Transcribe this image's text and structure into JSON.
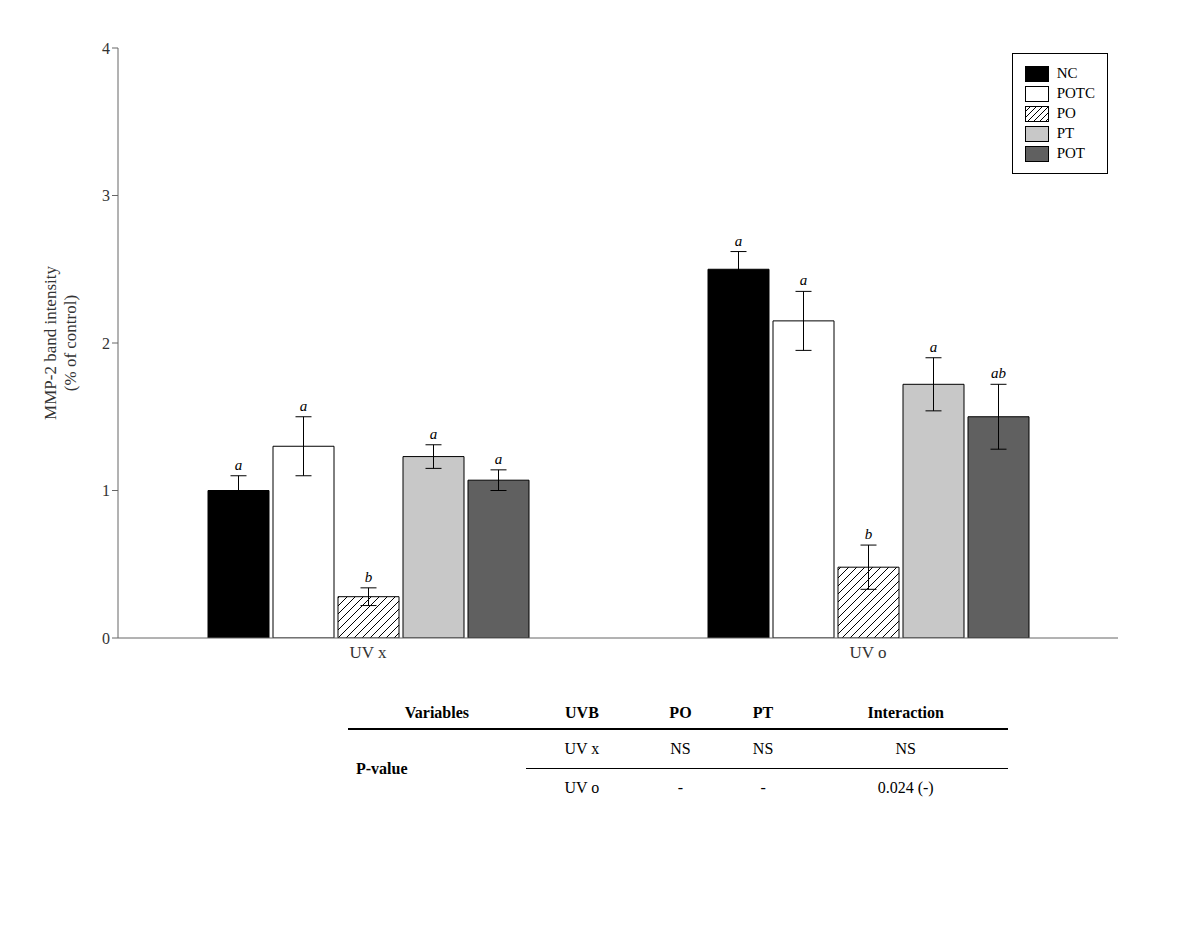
{
  "chart_data": {
    "type": "bar",
    "categories": [
      "UV x",
      "UV o"
    ],
    "ylabel": "MMP-2 band intensity\n(% of control)",
    "ylim": [
      0,
      4
    ],
    "yticks": [
      0,
      1,
      2,
      3,
      4
    ],
    "legend": "upper right",
    "series": [
      {
        "name": "NC",
        "color": "#000000",
        "values": [
          1.0,
          2.5
        ],
        "errors": [
          0.1,
          0.12
        ],
        "letters": [
          "a",
          "a"
        ]
      },
      {
        "name": "POTC",
        "color": "#ffffff",
        "values": [
          1.3,
          2.15
        ],
        "errors": [
          0.2,
          0.2
        ],
        "letters": [
          "a",
          "a"
        ]
      },
      {
        "name": "PO",
        "color": "#ffffff",
        "values": [
          0.28,
          0.48
        ],
        "errors": [
          0.06,
          0.15
        ],
        "letters": [
          "b",
          "b"
        ]
      },
      {
        "name": "PT",
        "color": "#c8c8c8",
        "values": [
          1.23,
          1.72
        ],
        "errors": [
          0.08,
          0.18
        ],
        "letters": [
          "a",
          "a"
        ]
      },
      {
        "name": "POT",
        "color": "#606060",
        "values": [
          1.07,
          1.5
        ],
        "errors": [
          0.07,
          0.22
        ],
        "letters": [
          "a",
          "ab"
        ]
      }
    ],
    "table": {
      "headers": [
        "Variables",
        "UVB",
        "PO",
        "PT",
        "Interaction"
      ],
      "row_label": "P-value",
      "rows": [
        [
          "UV x",
          "NS",
          "NS",
          "NS"
        ],
        [
          "UV o",
          "-",
          "-",
          "0.024 (-)"
        ]
      ]
    }
  }
}
